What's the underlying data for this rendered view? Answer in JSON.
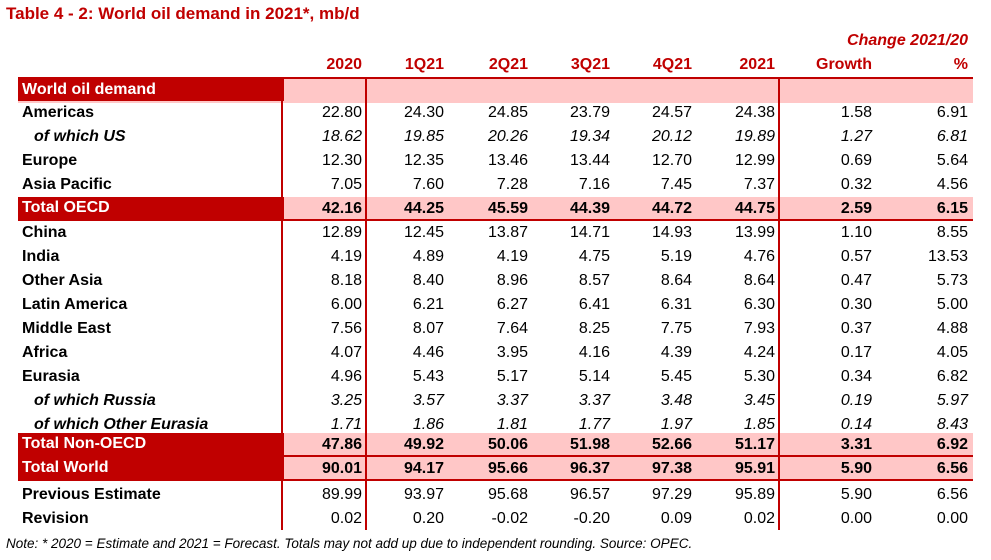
{
  "title": "Table 4 - 2: World oil demand in 2021*, mb/d",
  "change_header": "Change 2021/20",
  "columns": [
    "2020",
    "1Q21",
    "2Q21",
    "3Q21",
    "4Q21",
    "2021",
    "Growth",
    "%"
  ],
  "section_label": "World oil demand",
  "rows": [
    {
      "label": "Americas",
      "values": [
        "22.80",
        "24.30",
        "24.85",
        "23.79",
        "24.57",
        "24.38",
        "1.58",
        "6.91"
      ],
      "kind": "normal"
    },
    {
      "label": "of which US",
      "values": [
        "18.62",
        "19.85",
        "20.26",
        "19.34",
        "20.12",
        "19.89",
        "1.27",
        "6.81"
      ],
      "kind": "sub"
    },
    {
      "label": "Europe",
      "values": [
        "12.30",
        "12.35",
        "13.46",
        "13.44",
        "12.70",
        "12.99",
        "0.69",
        "5.64"
      ],
      "kind": "normal"
    },
    {
      "label": "Asia Pacific",
      "values": [
        "7.05",
        "7.60",
        "7.28",
        "7.16",
        "7.45",
        "7.37",
        "0.32",
        "4.56"
      ],
      "kind": "normal"
    },
    {
      "label": "Total OECD",
      "values": [
        "42.16",
        "44.25",
        "45.59",
        "44.39",
        "44.72",
        "44.75",
        "2.59",
        "6.15"
      ],
      "kind": "total"
    },
    {
      "label": "China",
      "values": [
        "12.89",
        "12.45",
        "13.87",
        "14.71",
        "14.93",
        "13.99",
        "1.10",
        "8.55"
      ],
      "kind": "normal"
    },
    {
      "label": "India",
      "values": [
        "4.19",
        "4.89",
        "4.19",
        "4.75",
        "5.19",
        "4.76",
        "0.57",
        "13.53"
      ],
      "kind": "normal"
    },
    {
      "label": "Other Asia",
      "values": [
        "8.18",
        "8.40",
        "8.96",
        "8.57",
        "8.64",
        "8.64",
        "0.47",
        "5.73"
      ],
      "kind": "normal"
    },
    {
      "label": "Latin America",
      "values": [
        "6.00",
        "6.21",
        "6.27",
        "6.41",
        "6.31",
        "6.30",
        "0.30",
        "5.00"
      ],
      "kind": "normal"
    },
    {
      "label": "Middle East",
      "values": [
        "7.56",
        "8.07",
        "7.64",
        "8.25",
        "7.75",
        "7.93",
        "0.37",
        "4.88"
      ],
      "kind": "normal"
    },
    {
      "label": "Africa",
      "values": [
        "4.07",
        "4.46",
        "3.95",
        "4.16",
        "4.39",
        "4.24",
        "0.17",
        "4.05"
      ],
      "kind": "normal"
    },
    {
      "label": "Eurasia",
      "values": [
        "4.96",
        "5.43",
        "5.17",
        "5.14",
        "5.45",
        "5.30",
        "0.34",
        "6.82"
      ],
      "kind": "normal"
    },
    {
      "label": "of which Russia",
      "values": [
        "3.25",
        "3.57",
        "3.37",
        "3.37",
        "3.48",
        "3.45",
        "0.19",
        "5.97"
      ],
      "kind": "sub"
    },
    {
      "label": "of which Other Eurasia",
      "values": [
        "1.71",
        "1.86",
        "1.81",
        "1.77",
        "1.97",
        "1.85",
        "0.14",
        "8.43"
      ],
      "kind": "sub"
    },
    {
      "label": "Total Non-OECD",
      "values": [
        "47.86",
        "49.92",
        "50.06",
        "51.98",
        "52.66",
        "51.17",
        "3.31",
        "6.92"
      ],
      "kind": "total"
    },
    {
      "label": "Total World",
      "values": [
        "90.01",
        "94.17",
        "95.66",
        "96.37",
        "97.38",
        "95.91",
        "5.90",
        "6.56"
      ],
      "kind": "total"
    },
    {
      "label": "Previous Estimate",
      "values": [
        "89.99",
        "93.97",
        "95.68",
        "96.57",
        "97.29",
        "95.89",
        "5.90",
        "6.56"
      ],
      "kind": "normal"
    },
    {
      "label": "Revision",
      "values": [
        "0.02",
        "0.20",
        "-0.02",
        "-0.20",
        "0.09",
        "0.02",
        "0.00",
        "0.00"
      ],
      "kind": "normal"
    }
  ],
  "note": "Note: * 2020 = Estimate and 2021 = Forecast. Totals may not add up due to independent rounding. Source: OPEC.",
  "colors": {
    "accent": "#c00000",
    "band": "#ffc7c7"
  }
}
